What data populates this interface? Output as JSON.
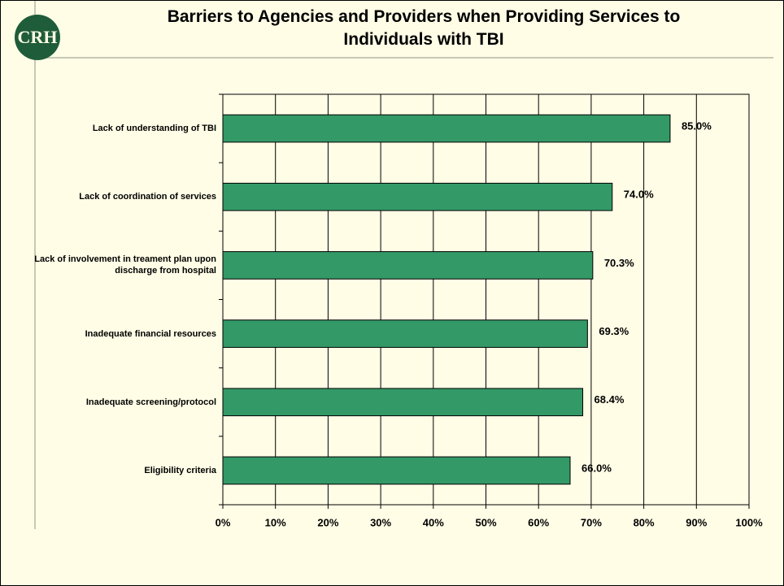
{
  "logo": "CRH",
  "chart_data": {
    "type": "hbar",
    "title": "Barriers to Agencies and Providers when Providing Services to Individuals with TBI",
    "categories": [
      "Lack of understanding of TBI",
      "Lack of coordination of services",
      "Lack of involvement in treament plan upon discharge from hospital",
      "Inadequate financial resources",
      "Inadequate screening/protocol",
      "Eligibility criteria"
    ],
    "values": [
      85.0,
      74.0,
      70.3,
      69.3,
      68.4,
      66.0
    ],
    "value_labels": [
      "85.0%",
      "74.0%",
      "70.3%",
      "69.3%",
      "68.4%",
      "66.0%"
    ],
    "color": "#339966",
    "xlim": [
      0,
      100
    ],
    "xticks": [
      {
        "value": 0,
        "label": "0%"
      },
      {
        "value": 10,
        "label": "10%"
      },
      {
        "value": 20,
        "label": "20%"
      },
      {
        "value": 30,
        "label": "30%"
      },
      {
        "value": 40,
        "label": "40%"
      },
      {
        "value": 50,
        "label": "50%"
      },
      {
        "value": 60,
        "label": "60%"
      },
      {
        "value": 70,
        "label": "70%"
      },
      {
        "value": 80,
        "label": "80%"
      },
      {
        "value": 90,
        "label": "90%"
      },
      {
        "value": 100,
        "label": "100%"
      }
    ],
    "grid": true
  }
}
